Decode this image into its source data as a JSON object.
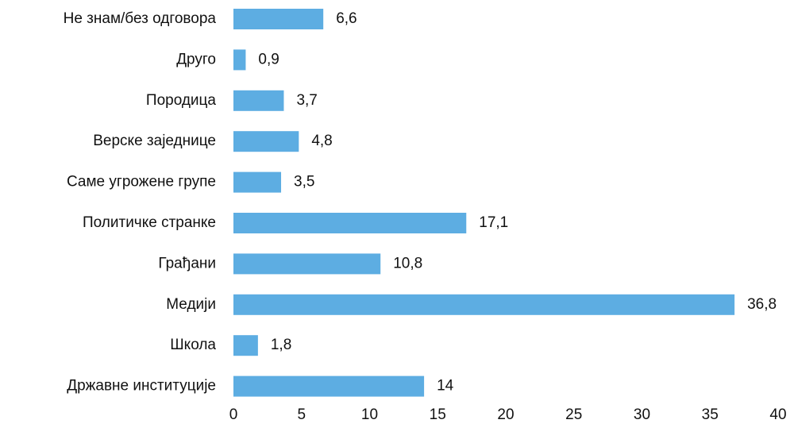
{
  "chart_data": {
    "type": "bar",
    "orientation": "horizontal",
    "categories": [
      "Не знам/без одговора",
      "Друго",
      "Породица",
      "Верске заједнице",
      "Саме угрожене групе",
      "Политичке странке",
      "Грађани",
      "Медији",
      "Школа",
      "Државне институције"
    ],
    "values": [
      6.6,
      0.9,
      3.7,
      4.8,
      3.5,
      17.1,
      10.8,
      36.8,
      1.8,
      14
    ],
    "value_labels": [
      "6,6",
      "0,9",
      "3,7",
      "4,8",
      "3,5",
      "17,1",
      "10,8",
      "36,8",
      "1,8",
      "14"
    ],
    "color": "#5dade2",
    "xlim": [
      0,
      40
    ],
    "xticks": [
      0,
      5,
      10,
      15,
      20,
      25,
      30,
      35,
      40
    ],
    "grid": false
  }
}
